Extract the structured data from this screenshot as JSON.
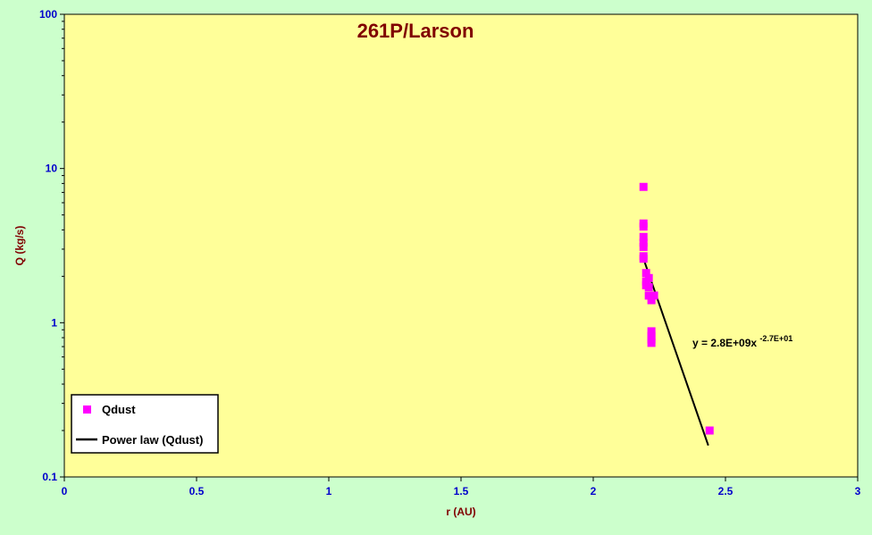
{
  "chart_data": {
    "type": "scatter",
    "title": "261P/Larson",
    "xlabel": "r (AU)",
    "ylabel": "Q (kg/s)",
    "xlim": [
      0,
      3
    ],
    "ylim": [
      0.1,
      100
    ],
    "yscale": "log",
    "x_ticks": [
      "0",
      "0.5",
      "1",
      "1.5",
      "2",
      "2.5",
      "3"
    ],
    "y_ticks": [
      "0.1",
      "1",
      "10",
      "100"
    ],
    "grid": false,
    "legend_position": "bottom-left",
    "colors": {
      "plot_bg": "#ffff99",
      "page_bg": "#ccffcc",
      "marker": "#ff00ff",
      "fit_line": "#000000",
      "title": "#800000",
      "ticks": "#0000cc"
    },
    "series": [
      {
        "name": "Qdust",
        "marker": "square",
        "x": [
          2.19,
          2.19,
          2.19,
          2.19,
          2.19,
          2.19,
          2.19,
          2.19,
          2.2,
          2.2,
          2.2,
          2.21,
          2.21,
          2.21,
          2.22,
          2.22,
          2.22,
          2.22,
          2.22,
          2.23,
          2.44
        ],
        "y": [
          7.6,
          4.4,
          4.2,
          3.6,
          3.3,
          3.1,
          2.7,
          2.6,
          2.1,
          1.85,
          1.75,
          1.7,
          1.95,
          1.5,
          1.4,
          0.88,
          0.82,
          0.78,
          0.74,
          1.5,
          0.2
        ]
      },
      {
        "name": "Power law (Qdust)",
        "kind": "line",
        "x": [
          2.19,
          2.435
        ],
        "y": [
          2.6,
          0.16
        ]
      }
    ],
    "annotations": {
      "equation_prefix": "y = 2.8E+09x",
      "equation_exponent": "-2.7E+01"
    }
  }
}
